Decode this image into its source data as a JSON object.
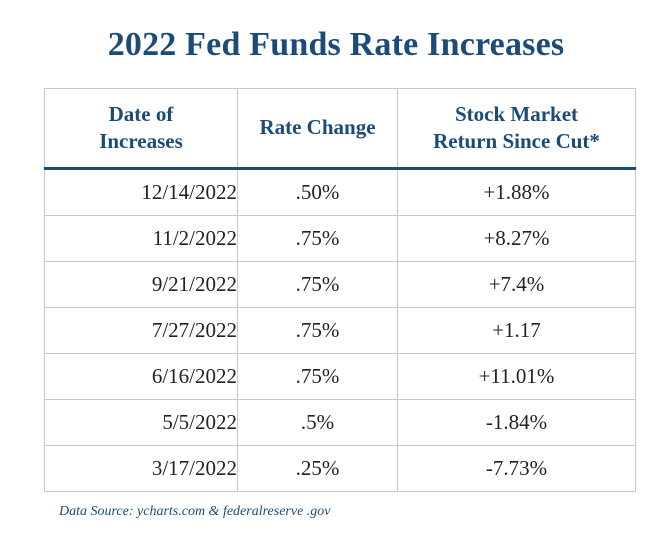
{
  "title": "2022 Fed Funds Rate Increases",
  "table": {
    "headers": {
      "date_line1": "Date of",
      "date_line2": "Increases",
      "rate": "Rate Change",
      "return_line1": "Stock Market",
      "return_line2": "Return Since Cut*"
    },
    "rows": [
      {
        "date": "12/14/2022",
        "rate": ".50%",
        "ret": "+1.88%"
      },
      {
        "date": "11/2/2022",
        "rate": ".75%",
        "ret": "+8.27%"
      },
      {
        "date": "9/21/2022",
        "rate": ".75%",
        "ret": "+7.4%"
      },
      {
        "date": "7/27/2022",
        "rate": ".75%",
        "ret": "+1.17"
      },
      {
        "date": "6/16/2022",
        "rate": ".75%",
        "ret": "+11.01%"
      },
      {
        "date": "5/5/2022",
        "rate": ".5%",
        "ret": "-1.84%"
      },
      {
        "date": "3/17/2022",
        "rate": ".25%",
        "ret": "-7.73%"
      }
    ]
  },
  "source": "Data Source: ycharts.com & federalreserve .gov",
  "colors": {
    "heading": "#1c4b7a",
    "text": "#222222",
    "border": "#c9c9c9"
  }
}
